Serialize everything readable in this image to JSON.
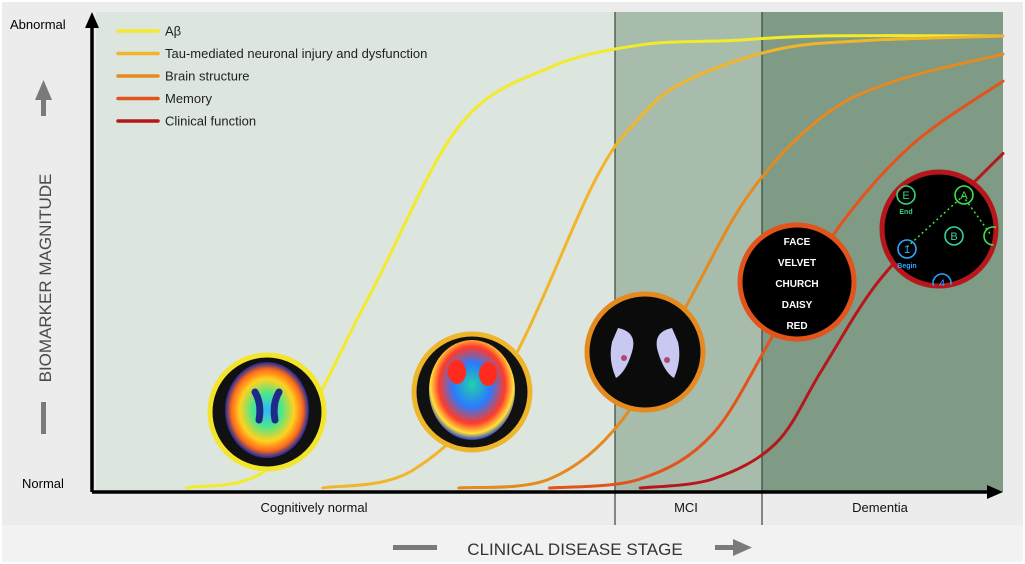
{
  "chart_data": {
    "type": "line",
    "title": "",
    "xlabel": "CLINICAL DISEASE STAGE",
    "ylabel": "BIOMARKER MAGNITUDE",
    "y_tick_labels": [
      "Normal",
      "Abnormal"
    ],
    "ylim": [
      0,
      1
    ],
    "xlim": [
      0,
      1
    ],
    "stages": [
      {
        "label": "Cognitively normal",
        "range": [
          0,
          0.57
        ]
      },
      {
        "label": "MCI",
        "range": [
          0.57,
          0.73
        ]
      },
      {
        "label": "Dementia",
        "range": [
          0.73,
          1.0
        ]
      }
    ],
    "legend_position": "top-left",
    "grid": false,
    "series": [
      {
        "name": "Aβ",
        "color": "#f2ea2a",
        "x": [
          0.1,
          0.2,
          0.3,
          0.4,
          0.5,
          0.6,
          0.7,
          0.8,
          1.0
        ],
        "y": [
          0.0,
          0.06,
          0.42,
          0.8,
          0.93,
          0.98,
          0.99,
          1.0,
          1.0
        ]
      },
      {
        "name": "Tau-mediated neuronal injury and dysfunction",
        "color": "#f1b52b",
        "x": [
          0.25,
          0.35,
          0.45,
          0.55,
          0.6,
          0.65,
          0.75,
          0.85,
          1.0
        ],
        "y": [
          0.0,
          0.04,
          0.25,
          0.68,
          0.82,
          0.9,
          0.97,
          0.99,
          1.0
        ]
      },
      {
        "name": "Brain structure",
        "color": "#e58a1f",
        "x": [
          0.4,
          0.5,
          0.58,
          0.65,
          0.72,
          0.8,
          0.88,
          1.0
        ],
        "y": [
          0.0,
          0.02,
          0.15,
          0.4,
          0.65,
          0.82,
          0.9,
          0.96
        ]
      },
      {
        "name": "Memory",
        "color": "#e2541b",
        "x": [
          0.5,
          0.6,
          0.68,
          0.75,
          0.82,
          0.9,
          1.0
        ],
        "y": [
          0.0,
          0.02,
          0.12,
          0.35,
          0.58,
          0.76,
          0.9
        ]
      },
      {
        "name": "Clinical function",
        "color": "#b5171b",
        "x": [
          0.6,
          0.68,
          0.75,
          0.8,
          0.86,
          0.93,
          1.0
        ],
        "y": [
          0.0,
          0.02,
          0.1,
          0.26,
          0.45,
          0.6,
          0.74
        ]
      }
    ]
  },
  "insets": {
    "word_list": [
      "FACE",
      "VELVET",
      "CHURCH",
      "DAISY",
      "RED"
    ],
    "trail_nodes": [
      "E",
      "End",
      "A",
      "B",
      "1",
      "Begin",
      "4"
    ]
  },
  "colors": {
    "region_normal": "#dde5df",
    "region_mci": "#a8bcac",
    "region_dementia": "#7f9a85",
    "axis": "#000000",
    "frame": "#e6e6e6"
  }
}
